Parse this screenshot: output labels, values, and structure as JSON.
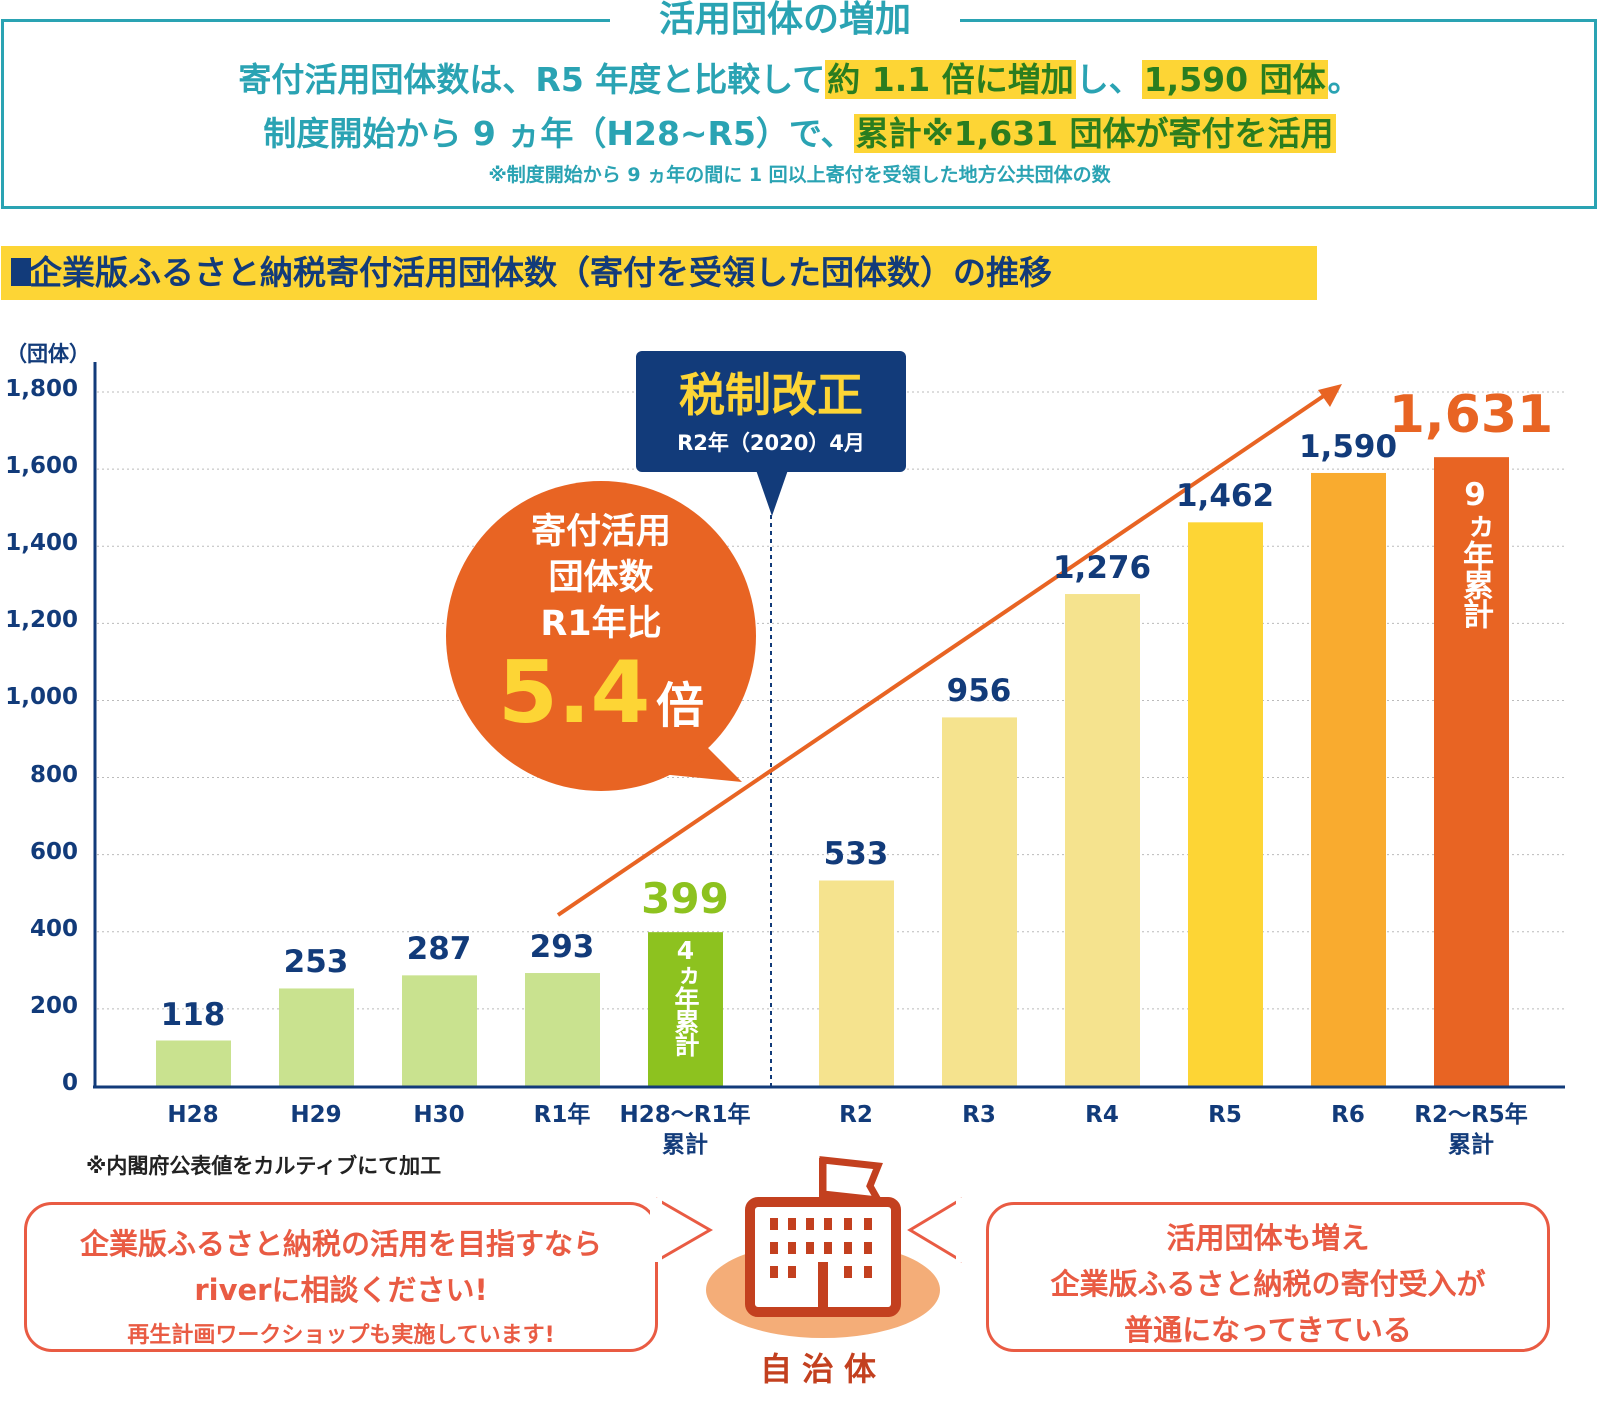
{
  "summary": {
    "title": "活用団体の増加",
    "line1_a": "寄付活用団体数は、R5 年度と比較して",
    "line1_hl1": "約 1.1 倍に増加",
    "line1_b": "し、",
    "line1_hl2": "1,590 団体",
    "line1_c": "。",
    "line2_a": "制度開始から 9 ヵ年（H28~R5）で、",
    "line2_hl": "累計※1,631 団体が寄付を活用",
    "note": "※制度開始から 9 ヵ年の間に 1 回以上寄付を受領した地方公共団体の数"
  },
  "section_title": "企業版ふるさと納税寄付活用団体数（寄付を受領した団体数）の推移",
  "tax_reform": {
    "title": "税制改正",
    "date": "R2年（2020）4月"
  },
  "bubble": {
    "l1": "寄付活用",
    "l2": "団体数",
    "l3": "R1年比",
    "value": "5.4",
    "unit": "倍"
  },
  "source_note": "※内閣府公表値をカルティブにて加工",
  "callout_left": {
    "l1": "企業版ふるさと納税の活用を目指すなら",
    "l2": "riverに相談ください!",
    "l3": "再生計画ワークショップも実施しています!"
  },
  "callout_right": {
    "l1": "活用団体も増え",
    "l2": "企業版ふるさと納税の寄付受入が",
    "l3": "普通になってきている"
  },
  "municipality_label": "自治体",
  "chart_data": {
    "type": "bar",
    "ylabel": "（団体）",
    "ylim": [
      0,
      1800
    ],
    "yticks": [
      "0",
      "200",
      "400",
      "600",
      "800",
      "1,000",
      "1,200",
      "1,400",
      "1,600",
      "1,800"
    ],
    "grid": true,
    "categories": [
      "H28",
      "H29",
      "H30",
      "R1年",
      "H28～R1年|累計",
      "R2",
      "R3",
      "R4",
      "R5",
      "R6",
      "R2～R5年|累計"
    ],
    "values": [
      118,
      253,
      287,
      293,
      399,
      533,
      956,
      1276,
      1462,
      1590,
      1631
    ],
    "labels": [
      "118",
      "253",
      "287",
      "293",
      "399",
      "533",
      "956",
      "1,276",
      "1,462",
      "1,590",
      "1,631"
    ],
    "colors": [
      "#c9e28f",
      "#c9e28f",
      "#c9e28f",
      "#c9e28f",
      "#8dc21f",
      "#f5e38e",
      "#f5e38e",
      "#f5e38e",
      "#fdd535",
      "#f9ab2f",
      "#e86423"
    ],
    "inner_labels": {
      "4": "4ヵ年累計",
      "10": "9ヵ年累計"
    }
  }
}
